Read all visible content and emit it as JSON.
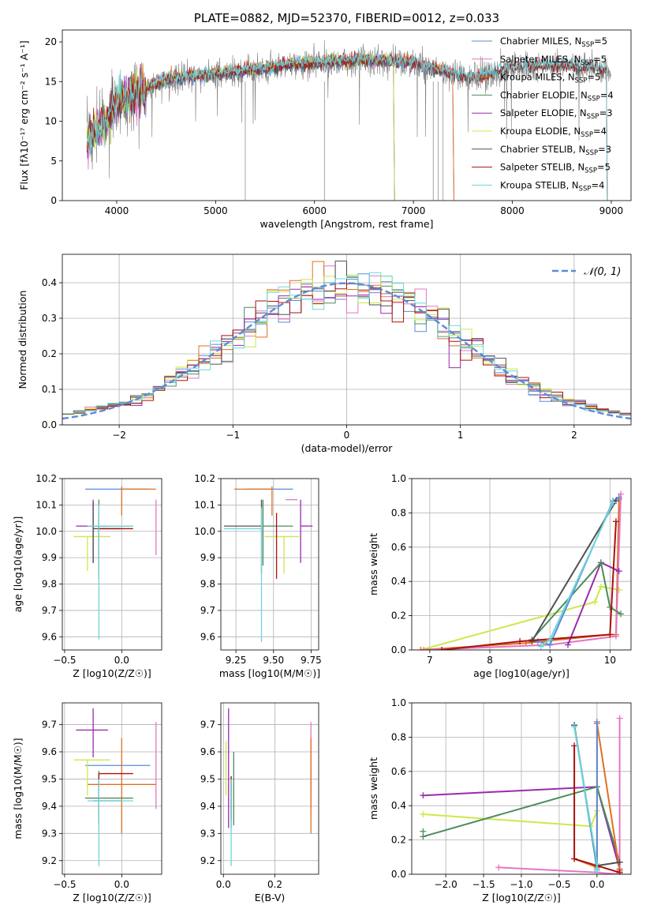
{
  "colors": {
    "chabrier_miles": "#5b8bd9",
    "salpeter_miles": "#e377c2",
    "kroupa_miles": "#e07020",
    "chabrier_elodie": "#4c8c5c",
    "salpeter_elodie": "#9a2aad",
    "kroupa_elodie": "#cce84a",
    "chabrier_stelib": "#505050",
    "salpeter_stelib": "#aa1010",
    "kroupa_stelib": "#6dd6dd",
    "data": "#7f7f7f"
  },
  "chart_data": [
    {
      "id": "spectrum",
      "type": "line",
      "title": "PLATE=0882, MJD=52370, FIBERID=0012, z=0.033",
      "xlabel": "wavelength [Angstrom, rest frame]",
      "ylabel": "Flux [fλ10⁻¹⁷ erg cm⁻² s⁻¹ A⁻¹]",
      "xlim": [
        3450,
        9200
      ],
      "ylim": [
        0,
        21.5
      ],
      "xticks": [
        4000,
        5000,
        6000,
        7000,
        8000,
        9000
      ],
      "yticks": [
        0,
        5,
        10,
        15,
        20
      ],
      "grid": false,
      "legend_position": "top-right",
      "legend": [
        "Chabrier MILES, N_SSP=5",
        "Salpeter MILES, N_SSP=5",
        "Kroupa MILES, N_SSP=5",
        "Chabrier ELODIE, N_SSP=4",
        "Salpeter ELODIE, N_SSP=3",
        "Kroupa ELODIE, N_SSP=4",
        "Chabrier STELIB, N_SSP=3",
        "Salpeter STELIB, N_SSP=5",
        "Kroupa STELIB, N_SSP=4"
      ],
      "continuum": {
        "x": [
          3700,
          3800,
          3900,
          4000,
          4100,
          4200,
          4300,
          4500,
          4700,
          5000,
          5300,
          5600,
          6000,
          6500,
          6800,
          7000,
          7200,
          7400,
          7600,
          7800,
          8000,
          8200,
          8400,
          8600,
          8800,
          9000
        ],
        "y": [
          7.5,
          9.0,
          9.5,
          12.5,
          12.5,
          13.5,
          14.0,
          15.2,
          15.5,
          15.8,
          16.3,
          16.8,
          17.3,
          17.6,
          17.5,
          17.3,
          16.5,
          16.0,
          15.4,
          16.0,
          16.6,
          16.9,
          17.0,
          16.9,
          16.7,
          16.5
        ]
      },
      "model_end_wavelength": {
        "miles": 7400,
        "elodie": 6800,
        "stelib": 8950
      }
    },
    {
      "id": "residuals",
      "type": "histogram",
      "xlabel": "(data-model)/error",
      "ylabel": "Normed distribution",
      "xlim": [
        -2.5,
        2.5
      ],
      "ylim": [
        0,
        0.48
      ],
      "xticks": [
        -2,
        -1,
        0,
        1,
        2
      ],
      "yticks": [
        0.0,
        0.1,
        0.2,
        0.3,
        0.4
      ],
      "grid": true,
      "legend_position": "top-right",
      "reference_label": "𝒩(0, 1)",
      "bin_width": 0.1
    },
    {
      "id": "age_vs_Z",
      "type": "errorbar",
      "xlabel": "Z [log10(Z/Z☉)]",
      "ylabel": "age  [log10(age/yr)]",
      "xlim": [
        -0.52,
        0.35
      ],
      "ylim": [
        9.55,
        10.2
      ],
      "xticks": [
        -0.5,
        0.0
      ],
      "yticks": [
        9.6,
        9.7,
        9.8,
        9.9,
        10.0,
        10.1,
        10.2
      ],
      "grid": true,
      "points": [
        {
          "model": "chabrier_miles",
          "x": -0.05,
          "xerr": [
            0.27,
            0.3
          ],
          "y": 10.16,
          "yerr": [
            0.0,
            0.0
          ]
        },
        {
          "model": "salpeter_miles",
          "x": 0.3,
          "xerr": [
            0.0,
            0.0
          ],
          "y": 10.12,
          "yerr": [
            0.21,
            0.0
          ]
        },
        {
          "model": "kroupa_miles",
          "x": 0.0,
          "xerr": [
            0.0,
            0.3
          ],
          "y": 10.16,
          "yerr": [
            0.1,
            0.01
          ]
        },
        {
          "model": "chabrier_elodie",
          "x": -0.2,
          "xerr": [
            0.1,
            0.3
          ],
          "y": 10.02,
          "yerr": [
            0.15,
            0.1
          ]
        },
        {
          "model": "salpeter_elodie",
          "x": -0.25,
          "xerr": [
            0.15,
            0.13
          ],
          "y": 10.02,
          "yerr": [
            0.14,
            0.1
          ]
        },
        {
          "model": "kroupa_elodie",
          "x": -0.3,
          "xerr": [
            0.12,
            0.2
          ],
          "y": 9.98,
          "yerr": [
            0.13,
            0.0
          ]
        },
        {
          "model": "chabrier_stelib",
          "x": -0.25,
          "xerr": [
            0.0,
            0.25
          ],
          "y": 10.01,
          "yerr": [
            0.13,
            0.1
          ]
        },
        {
          "model": "salpeter_stelib",
          "x": -0.2,
          "xerr": [
            0.0,
            0.3
          ],
          "y": 10.01,
          "yerr": [
            0.19,
            0.06
          ]
        },
        {
          "model": "kroupa_stelib",
          "x": -0.2,
          "xerr": [
            0.1,
            0.3
          ],
          "y": 10.02,
          "yerr": [
            0.43,
            0.08
          ]
        }
      ]
    },
    {
      "id": "age_vs_mass",
      "type": "errorbar",
      "xlabel": "mass [log10(M/M☉)]",
      "ylabel": "",
      "xlim": [
        9.15,
        9.8
      ],
      "ylim": [
        9.55,
        10.2
      ],
      "xticks": [
        9.25,
        9.5,
        9.75
      ],
      "yticks": [
        9.6,
        9.7,
        9.8,
        9.9,
        10.0,
        10.1,
        10.2
      ],
      "grid": true,
      "points": [
        {
          "model": "chabrier_miles",
          "x": 9.55,
          "xerr": [
            0.23,
            0.08
          ],
          "y": 10.16,
          "yerr": [
            0.0,
            0.0
          ]
        },
        {
          "model": "salpeter_miles",
          "x": 9.66,
          "xerr": [
            0.08,
            0.0
          ],
          "y": 10.12,
          "yerr": [
            0.0,
            0.0
          ]
        },
        {
          "model": "kroupa_miles",
          "x": 9.49,
          "xerr": [
            0.25,
            0.0
          ],
          "y": 10.16,
          "yerr": [
            0.1,
            0.01
          ]
        },
        {
          "model": "chabrier_elodie",
          "x": 9.43,
          "xerr": [
            0.0,
            0.2
          ],
          "y": 10.02,
          "yerr": [
            0.15,
            0.1
          ]
        },
        {
          "model": "salpeter_elodie",
          "x": 9.68,
          "xerr": [
            0.0,
            0.08
          ],
          "y": 10.02,
          "yerr": [
            0.14,
            0.1
          ]
        },
        {
          "model": "kroupa_elodie",
          "x": 9.57,
          "xerr": [
            0.13,
            0.1
          ],
          "y": 9.98,
          "yerr": [
            0.14,
            0.0
          ]
        },
        {
          "model": "chabrier_stelib",
          "x": 9.42,
          "xerr": [
            0.25,
            0.0
          ],
          "y": 10.02,
          "yerr": [
            0.18,
            0.1
          ]
        },
        {
          "model": "salpeter_stelib",
          "x": 9.52,
          "xerr": [
            0.0,
            0.0
          ],
          "y": 10.01,
          "yerr": [
            0.19,
            0.06
          ]
        },
        {
          "model": "kroupa_stelib",
          "x": 9.42,
          "xerr": [
            0.25,
            0.0
          ],
          "y": 10.01,
          "yerr": [
            0.43,
            0.08
          ]
        }
      ]
    },
    {
      "id": "weight_vs_age",
      "type": "line",
      "xlabel": "age  [log10(age/yr)]",
      "ylabel": "mass weight",
      "xlim": [
        6.7,
        10.35
      ],
      "ylim": [
        0,
        1.0
      ],
      "xticks": [
        7,
        8,
        9,
        10
      ],
      "yticks": [
        0.0,
        0.2,
        0.4,
        0.6,
        0.8,
        1.0
      ],
      "grid": true,
      "series": [
        {
          "model": "kroupa_elodie",
          "x": [
            6.85,
            9.75,
            9.85,
            10.15
          ],
          "y": [
            0.0,
            0.28,
            0.37,
            0.35
          ]
        },
        {
          "model": "kroupa_miles",
          "x": [
            6.85,
            8.6,
            10.0,
            10.1,
            10.15
          ],
          "y": [
            0.0,
            0.04,
            0.09,
            0.09,
            0.88
          ]
        },
        {
          "model": "salpeter_miles",
          "x": [
            6.9,
            9.0,
            10.1,
            10.18
          ],
          "y": [
            0.0,
            0.03,
            0.08,
            0.91
          ]
        },
        {
          "model": "salpeter_elodie",
          "x": [
            9.3,
            9.85,
            10.15
          ],
          "y": [
            0.03,
            0.51,
            0.46
          ]
        },
        {
          "model": "chabrier_elodie",
          "x": [
            8.7,
            9.85,
            10.0,
            10.18
          ],
          "y": [
            0.06,
            0.51,
            0.25,
            0.21
          ]
        },
        {
          "model": "chabrier_miles",
          "x": [
            8.8,
            9.0,
            10.05,
            10.15
          ],
          "y": [
            0.05,
            0.03,
            0.87,
            0.89
          ]
        },
        {
          "model": "chabrier_stelib",
          "x": [
            8.7,
            10.1
          ],
          "y": [
            0.05,
            0.87
          ]
        },
        {
          "model": "salpeter_stelib",
          "x": [
            7.2,
            8.5,
            10.0,
            10.1
          ],
          "y": [
            0.0,
            0.05,
            0.09,
            0.75
          ]
        },
        {
          "model": "kroupa_stelib",
          "x": [
            8.85,
            9.0,
            10.05
          ],
          "y": [
            0.02,
            0.06,
            0.86
          ]
        }
      ]
    },
    {
      "id": "mass_vs_Z",
      "type": "errorbar",
      "xlabel": "Z [log10(Z/Z☉)]",
      "ylabel": "mass [log10(M/M☉)]",
      "xlim": [
        -0.52,
        0.35
      ],
      "ylim": [
        9.15,
        9.78
      ],
      "xticks": [
        -0.5,
        0.0
      ],
      "yticks": [
        9.2,
        9.3,
        9.4,
        9.5,
        9.6,
        9.7
      ],
      "grid": true,
      "points": [
        {
          "model": "chabrier_miles",
          "x": -0.05,
          "xerr": [
            0.27,
            0.3
          ],
          "y": 9.55,
          "yerr": [
            0.0,
            0.0
          ]
        },
        {
          "model": "salpeter_miles",
          "x": 0.3,
          "xerr": [
            0.0,
            0.0
          ],
          "y": 9.66,
          "yerr": [
            0.27,
            0.05
          ]
        },
        {
          "model": "kroupa_miles",
          "x": 0.0,
          "xerr": [
            0.3,
            0.3
          ],
          "y": 9.48,
          "yerr": [
            0.18,
            0.17
          ]
        },
        {
          "model": "chabrier_elodie",
          "x": -0.2,
          "xerr": [
            0.12,
            0.3
          ],
          "y": 9.43,
          "yerr": [
            0.1,
            0.1
          ]
        },
        {
          "model": "salpeter_elodie",
          "x": -0.25,
          "xerr": [
            0.15,
            0.13
          ],
          "y": 9.68,
          "yerr": [
            0.1,
            0.08
          ]
        },
        {
          "model": "kroupa_elodie",
          "x": -0.3,
          "xerr": [
            0.12,
            0.2
          ],
          "y": 9.57,
          "yerr": [
            0.13,
            0.0
          ]
        },
        {
          "model": "chabrier_stelib",
          "x": -0.25,
          "xerr": [
            0.0,
            0.25
          ],
          "y": 9.42,
          "yerr": [
            0.0,
            0.0
          ]
        },
        {
          "model": "salpeter_stelib",
          "x": -0.2,
          "xerr": [
            0.0,
            0.3
          ],
          "y": 9.52,
          "yerr": [
            0.18,
            0.0
          ]
        },
        {
          "model": "kroupa_stelib",
          "x": -0.2,
          "xerr": [
            0.1,
            0.3
          ],
          "y": 9.42,
          "yerr": [
            0.24,
            0.08
          ]
        }
      ]
    },
    {
      "id": "mass_vs_ebv",
      "type": "errorbar",
      "xlabel": "E(B-V)",
      "ylabel": "",
      "xlim": [
        -0.01,
        0.37
      ],
      "ylim": [
        9.15,
        9.78
      ],
      "xticks": [
        0.0,
        0.2
      ],
      "yticks": [
        9.2,
        9.3,
        9.4,
        9.5,
        9.6,
        9.7
      ],
      "grid": true,
      "points": [
        {
          "model": "chabrier_miles",
          "x": 0.34,
          "xerr": [
            0.0,
            0.0
          ],
          "y": 9.5,
          "yerr": [
            0.05,
            0.05
          ]
        },
        {
          "model": "salpeter_miles",
          "x": 0.34,
          "xerr": [
            0.0,
            0.0
          ],
          "y": 9.66,
          "yerr": [
            0.27,
            0.05
          ]
        },
        {
          "model": "kroupa_miles",
          "x": 0.34,
          "xerr": [
            0.0,
            0.0
          ],
          "y": 9.48,
          "yerr": [
            0.18,
            0.17
          ]
        },
        {
          "model": "chabrier_elodie",
          "x": 0.04,
          "xerr": [
            0.0,
            0.0
          ],
          "y": 9.43,
          "yerr": [
            0.1,
            0.17
          ]
        },
        {
          "model": "salpeter_elodie",
          "x": 0.02,
          "xerr": [
            0.0,
            0.0
          ],
          "y": 9.68,
          "yerr": [
            0.36,
            0.08
          ]
        },
        {
          "model": "kroupa_elodie",
          "x": 0.01,
          "xerr": [
            0.0,
            0.0
          ],
          "y": 9.57,
          "yerr": [
            0.13,
            0.07
          ]
        },
        {
          "model": "chabrier_stelib",
          "x": 0.03,
          "xerr": [
            0.0,
            0.0
          ],
          "y": 9.42,
          "yerr": [
            0.1,
            0.09
          ]
        },
        {
          "model": "salpeter_stelib",
          "x": 0.03,
          "xerr": [
            0.0,
            0.0
          ],
          "y": 9.45,
          "yerr": [
            0.1,
            0.06
          ]
        },
        {
          "model": "kroupa_stelib",
          "x": 0.03,
          "xerr": [
            0.0,
            0.0
          ],
          "y": 9.42,
          "yerr": [
            0.24,
            0.08
          ]
        }
      ]
    },
    {
      "id": "weight_vs_Z",
      "type": "line",
      "xlabel": "Z [log10(Z/Z☉)]",
      "ylabel": "mass weight",
      "xlim": [
        -2.45,
        0.45
      ],
      "ylim": [
        0,
        1.0
      ],
      "xticks": [
        -2.0,
        -1.5,
        -1.0,
        -0.5,
        0.0
      ],
      "yticks": [
        0.0,
        0.2,
        0.4,
        0.6,
        0.8,
        1.0
      ],
      "grid": true,
      "series": [
        {
          "model": "salpeter_elodie",
          "x": [
            -2.3,
            0.0,
            0.3
          ],
          "y": [
            0.46,
            0.51,
            0.03
          ]
        },
        {
          "model": "kroupa_elodie",
          "x": [
            -2.3,
            -0.08,
            0.0,
            0.0
          ],
          "y": [
            0.35,
            0.28,
            0.37,
            0.04
          ]
        },
        {
          "model": "chabrier_elodie",
          "x": [
            -2.3,
            0.0,
            0.3,
            0.3
          ],
          "y": [
            0.22,
            0.51,
            0.07,
            0.0
          ]
        },
        {
          "model": "salpeter_miles",
          "x": [
            -1.3,
            0.0,
            0.3,
            0.3
          ],
          "y": [
            0.04,
            0.01,
            0.0,
            0.91
          ]
        },
        {
          "model": "kroupa_miles",
          "x": [
            -0.3,
            0.0,
            0.0,
            0.3
          ],
          "y": [
            0.09,
            0.04,
            0.88,
            0.02
          ]
        },
        {
          "model": "chabrier_miles",
          "x": [
            -0.3,
            0.0,
            0.0
          ],
          "y": [
            0.87,
            0.03,
            0.89
          ]
        },
        {
          "model": "chabrier_stelib",
          "x": [
            -0.3,
            0.0,
            0.3
          ],
          "y": [
            0.87,
            0.05,
            0.07
          ]
        },
        {
          "model": "salpeter_stelib",
          "x": [
            -0.3,
            -0.3,
            0.3
          ],
          "y": [
            0.75,
            0.09,
            0.01
          ]
        },
        {
          "model": "kroupa_stelib",
          "x": [
            -0.3,
            0.0,
            0.0
          ],
          "y": [
            0.86,
            0.06,
            0.02
          ]
        },
        {
          "model": "chabrier_elodie",
          "x": [
            -2.3
          ],
          "y": [
            0.25
          ]
        }
      ]
    }
  ]
}
